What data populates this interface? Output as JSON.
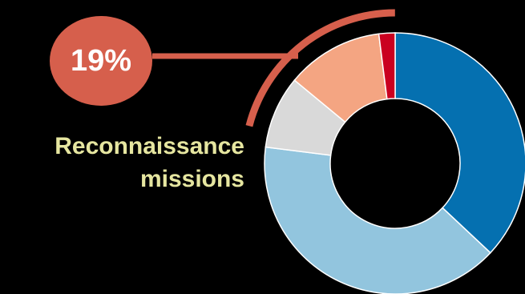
{
  "chart_data": {
    "type": "pie",
    "style": "donut",
    "title": "",
    "slices": [
      {
        "value": 37,
        "color": "#0570b0"
      },
      {
        "value": 40,
        "color": "#92c5de"
      },
      {
        "value": 9,
        "color": "#d9d9d9"
      },
      {
        "value": 12,
        "color": "#f4a582"
      },
      {
        "value": 2,
        "color": "#ca0020"
      }
    ],
    "highlight": {
      "value_label": "19%",
      "label_line1": "Reconnaissance",
      "label_line2": "missions",
      "color": "#d65f4c",
      "label_color": "#e6e6a0"
    }
  }
}
